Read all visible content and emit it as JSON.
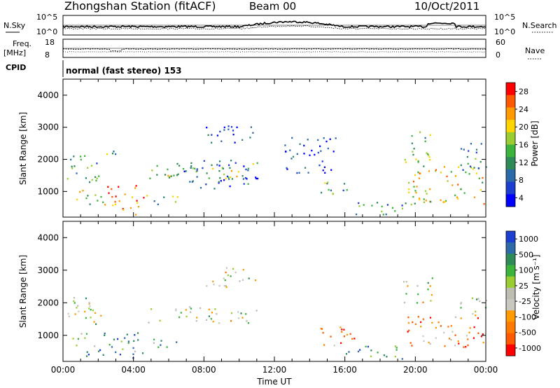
{
  "header": {
    "station_title": "Zhongshan Station (fitACF)",
    "beam": "Beam 00",
    "date": "10/Oct/2011"
  },
  "nsky_panel": {
    "left_label": "N.Sky",
    "left_ticks": [
      "10^5",
      "10^0"
    ],
    "right_label": "N.Search",
    "right_ticks": [
      "10^5",
      "10^0"
    ]
  },
  "freq_panel": {
    "left_label_line1": "Freq.",
    "left_label_line2": "[MHz]",
    "left_ticks": [
      "18",
      "8"
    ],
    "right_label": "Nave",
    "right_ticks": [
      "60",
      "0"
    ]
  },
  "cpid": {
    "label": "CPID",
    "mode_text": "normal (fast stereo) 153"
  },
  "x_axis": {
    "ticks": [
      "00:00",
      "04:00",
      "08:00",
      "12:00",
      "16:00",
      "20:00",
      "00:00"
    ],
    "label": "Time UT"
  },
  "chart_data": [
    {
      "type": "heatmap",
      "panel": "power",
      "ylabel": "Slant Range [km]",
      "ylim": [
        200,
        4500
      ],
      "yticks": [
        "4000",
        "3000",
        "2000",
        "1000"
      ],
      "xlim_hours": [
        0,
        24
      ],
      "colorbar": {
        "label": "Power [dB]",
        "ticks": [
          "28",
          "24",
          "20",
          "16",
          "12",
          "8",
          "4"
        ],
        "colors": [
          "#ff0000",
          "#ff5a00",
          "#ff9a00",
          "#ffd400",
          "#9acd32",
          "#3cb43c",
          "#2e8b57",
          "#2a6aa8",
          "#1c3fd0",
          "#0000ff"
        ]
      },
      "regions": [
        {
          "t": [
            0.2,
            2.2
          ],
          "r": [
            1300,
            2200
          ],
          "level": 0.35
        },
        {
          "t": [
            0.5,
            2.5
          ],
          "r": [
            600,
            1100
          ],
          "level": 0.55
        },
        {
          "t": [
            2.5,
            4.7
          ],
          "r": [
            300,
            1200
          ],
          "level": 0.85
        },
        {
          "t": [
            2.2,
            3.0
          ],
          "r": [
            1800,
            2300
          ],
          "level": 0.4
        },
        {
          "t": [
            4.5,
            6.5
          ],
          "r": [
            600,
            900
          ],
          "level": 0.45
        },
        {
          "t": [
            4.8,
            11.0
          ],
          "r": [
            1400,
            1900
          ],
          "level": 0.5
        },
        {
          "t": [
            6.5,
            11.2
          ],
          "r": [
            1100,
            2000
          ],
          "level": 0.2
        },
        {
          "t": [
            8.0,
            11.0
          ],
          "r": [
            2500,
            3100
          ],
          "level": 0.1
        },
        {
          "t": [
            12.5,
            15.5
          ],
          "r": [
            1600,
            2700
          ],
          "level": 0.1
        },
        {
          "t": [
            14.5,
            16.2
          ],
          "r": [
            800,
            1400
          ],
          "level": 0.4
        },
        {
          "t": [
            16.0,
            19.5
          ],
          "r": [
            300,
            700
          ],
          "level": 0.35
        },
        {
          "t": [
            19.3,
            20.9
          ],
          "r": [
            1800,
            2900
          ],
          "level": 0.5
        },
        {
          "t": [
            19.5,
            24.0
          ],
          "r": [
            600,
            1800
          ],
          "level": 0.6
        },
        {
          "t": [
            22.5,
            24.0
          ],
          "r": [
            1600,
            2600
          ],
          "level": 0.35
        }
      ]
    },
    {
      "type": "heatmap",
      "panel": "velocity",
      "ylabel": "Slant Range [km]",
      "ylim": [
        200,
        4500
      ],
      "yticks": [
        "4000",
        "3000",
        "2000",
        "1000"
      ],
      "xlim_hours": [
        0,
        24
      ],
      "colorbar": {
        "label": "Velocity [m s⁻¹]",
        "ticks": [
          "1000",
          "500",
          "100",
          "25",
          "-25",
          "-100",
          "-500",
          "-1000"
        ],
        "colors": [
          "#1c3fd0",
          "#2e6aa8",
          "#2e8b57",
          "#3cb43c",
          "#9acd32",
          "#bdbdb2",
          "#c8c8c0",
          "#ff9a00",
          "#ff7a00",
          "#ff5a00",
          "#ff0000"
        ]
      },
      "regions": [
        {
          "t": [
            0.2,
            2.5
          ],
          "r": [
            1300,
            2200
          ],
          "level": 0.55
        },
        {
          "t": [
            0.5,
            4.5
          ],
          "r": [
            300,
            1100
          ],
          "level": 0.75
        },
        {
          "t": [
            4.5,
            6.5
          ],
          "r": [
            600,
            900
          ],
          "level": 0.7
        },
        {
          "t": [
            4.8,
            11.0
          ],
          "r": [
            1400,
            1900
          ],
          "level": 0.5
        },
        {
          "t": [
            8.0,
            11.0
          ],
          "r": [
            2500,
            3100
          ],
          "level": 0.5
        },
        {
          "t": [
            14.5,
            16.5
          ],
          "r": [
            700,
            1400
          ],
          "level": 0.2
        },
        {
          "t": [
            16.0,
            19.5
          ],
          "r": [
            300,
            700
          ],
          "level": 0.75
        },
        {
          "t": [
            19.3,
            21.0
          ],
          "r": [
            2000,
            2800
          ],
          "level": 0.5
        },
        {
          "t": [
            19.5,
            24.0
          ],
          "r": [
            600,
            1600
          ],
          "level": 0.25
        },
        {
          "t": [
            22.5,
            24.0
          ],
          "r": [
            1600,
            2300
          ],
          "level": 0.5
        }
      ]
    }
  ]
}
